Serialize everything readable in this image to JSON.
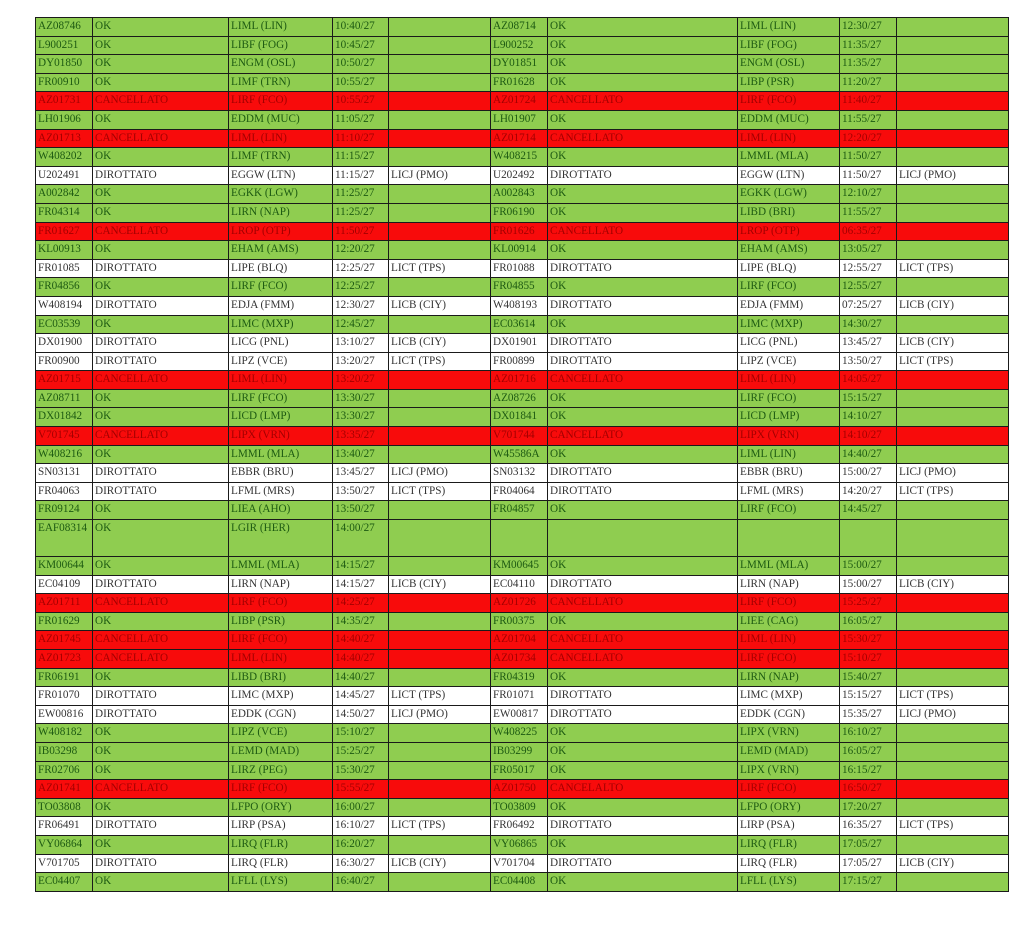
{
  "colors": {
    "ok": "#8fcd50",
    "cancelled": "#f80b0b",
    "diverted": "#ffffff"
  },
  "rows": [
    {
      "l": [
        "AZ08746",
        "OK",
        "LIML (LIN)",
        "10:40/27",
        ""
      ],
      "r": [
        "AZ08714",
        "OK",
        "LIML (LIN)",
        "12:30/27",
        ""
      ]
    },
    {
      "l": [
        "L900251",
        "OK",
        "LIBF (FOG)",
        "10:45/27",
        ""
      ],
      "r": [
        "L900252",
        "OK",
        "LIBF (FOG)",
        "11:35/27",
        ""
      ]
    },
    {
      "l": [
        "DY01850",
        "OK",
        "ENGM (OSL)",
        "10:50/27",
        ""
      ],
      "r": [
        "DY01851",
        "OK",
        "ENGM (OSL)",
        "11:35/27",
        ""
      ]
    },
    {
      "l": [
        "FR00910",
        "OK",
        "LIMF (TRN)",
        "10:55/27",
        ""
      ],
      "r": [
        "FR01628",
        "OK",
        "LIBP (PSR)",
        "11:20/27",
        ""
      ]
    },
    {
      "l": [
        "AZ01731",
        "CANCELLATO",
        "LIRF (FCO)",
        "10:55/27",
        ""
      ],
      "r": [
        "AZ01724",
        "CANCELLATO",
        "LIRF (FCO)",
        "11:40/27",
        ""
      ]
    },
    {
      "l": [
        "LH01906",
        "OK",
        "EDDM (MUC)",
        "11:05/27",
        ""
      ],
      "r": [
        "LH01907",
        "OK",
        "EDDM (MUC)",
        "11:55/27",
        ""
      ]
    },
    {
      "l": [
        "AZ01713",
        "CANCELLATO",
        "LIML (LIN)",
        "11:10/27",
        ""
      ],
      "r": [
        "AZ01714",
        "CANCELLATO",
        "LIML (LIN)",
        "12:20/27",
        ""
      ]
    },
    {
      "l": [
        "W408202",
        "OK",
        "LIMF (TRN)",
        "11:15/27",
        ""
      ],
      "r": [
        "W408215",
        "OK",
        "LMML (MLA)",
        "11:50/27",
        ""
      ]
    },
    {
      "l": [
        "U202491",
        "DIROTTATO",
        "EGGW (LTN)",
        "11:15/27",
        "LICJ (PMO)"
      ],
      "r": [
        "U202492",
        "DIROTTATO",
        "EGGW (LTN)",
        "11:50/27",
        "LICJ (PMO)"
      ]
    },
    {
      "l": [
        "A002842",
        "OK",
        "EGKK (LGW)",
        "11:25/27",
        ""
      ],
      "r": [
        "A002843",
        "OK",
        "EGKK (LGW)",
        "12:10/27",
        ""
      ]
    },
    {
      "l": [
        "FR04314",
        "OK",
        "LIRN (NAP)",
        "11:25/27",
        ""
      ],
      "r": [
        "FR06190",
        "OK",
        "LIBD (BRI)",
        "11:55/27",
        ""
      ]
    },
    {
      "l": [
        "FR01627",
        "CANCELLATO",
        "LROP (OTP)",
        "11:50/27",
        ""
      ],
      "r": [
        "FR01626",
        "CANCELLATO",
        "LROP (OTP)",
        "06:35/27",
        ""
      ]
    },
    {
      "l": [
        "KL00913",
        "OK",
        "EHAM (AMS)",
        "12:20/27",
        ""
      ],
      "r": [
        "KL00914",
        "OK",
        "EHAM (AMS)",
        "13:05/27",
        ""
      ]
    },
    {
      "l": [
        "FR01085",
        "DIROTTATO",
        "LIPE (BLQ)",
        "12:25/27",
        "LICT (TPS)"
      ],
      "r": [
        "FR01088",
        "DIROTTATO",
        "LIPE (BLQ)",
        "12:55/27",
        "LICT (TPS)"
      ]
    },
    {
      "l": [
        "FR04856",
        "OK",
        "LIRF (FCO)",
        "12:25/27",
        ""
      ],
      "r": [
        "FR04855",
        "OK",
        "LIRF (FCO)",
        "12:55/27",
        ""
      ]
    },
    {
      "l": [
        "W408194",
        "DIROTTATO",
        "EDJA (FMM)",
        "12:30/27",
        "LICB (CIY)"
      ],
      "r": [
        "W408193",
        "DIROTTATO",
        "EDJA (FMM)",
        "07:25/27",
        "LICB (CIY)"
      ]
    },
    {
      "l": [
        "EC03539",
        "OK",
        "LIMC (MXP)",
        "12:45/27",
        ""
      ],
      "r": [
        "EC03614",
        "OK",
        "LIMC (MXP)",
        "14:30/27",
        ""
      ]
    },
    {
      "l": [
        "DX01900",
        "DIROTTATO",
        "LICG (PNL)",
        "13:10/27",
        "LICB (CIY)"
      ],
      "r": [
        "DX01901",
        "DIROTTATO",
        "LICG (PNL)",
        "13:45/27",
        "LICB (CIY)"
      ]
    },
    {
      "l": [
        "FR00900",
        "DIROTTATO",
        "LIPZ (VCE)",
        "13:20/27",
        "LICT (TPS)"
      ],
      "r": [
        "FR00899",
        "DIROTTATO",
        "LIPZ (VCE)",
        "13:50/27",
        "LICT (TPS)"
      ]
    },
    {
      "l": [
        "AZ01715",
        "CANCELLATO",
        "LIML (LIN)",
        "13:20/27",
        ""
      ],
      "r": [
        "AZ01716",
        "CANCELLATO",
        "LIML (LIN)",
        "14:05/27",
        ""
      ]
    },
    {
      "l": [
        "AZ08711",
        "OK",
        "LIRF (FCO)",
        "13:30/27",
        ""
      ],
      "r": [
        "AZ08726",
        "OK",
        "LIRF (FCO)",
        "15:15/27",
        ""
      ]
    },
    {
      "l": [
        "DX01842",
        "OK",
        "LICD (LMP)",
        "13:30/27",
        ""
      ],
      "r": [
        "DX01841",
        "OK",
        "LICD (LMP)",
        "14:10/27",
        ""
      ]
    },
    {
      "l": [
        "V701745",
        "CANCELLATO",
        "LIPX (VRN)",
        "13:35/27",
        ""
      ],
      "r": [
        "V701744",
        "CANCELLATO",
        "LIPX (VRN)",
        "14:10/27",
        ""
      ]
    },
    {
      "l": [
        "W408216",
        "OK",
        "LMML (MLA)",
        "13:40/27",
        ""
      ],
      "r": [
        "W45586A",
        "OK",
        "LIML (LIN)",
        "14:40/27",
        ""
      ]
    },
    {
      "l": [
        "SN03131",
        "DIROTTATO",
        "EBBR (BRU)",
        "13:45/27",
        "LICJ (PMO)"
      ],
      "r": [
        "SN03132",
        "DIROTTATO",
        "EBBR (BRU)",
        "15:00/27",
        "LICJ (PMO)"
      ]
    },
    {
      "l": [
        "FR04063",
        "DIROTTATO",
        "LFML (MRS)",
        "13:50/27",
        "LICT (TPS)"
      ],
      "r": [
        "FR04064",
        "DIROTTATO",
        "LFML (MRS)",
        "14:20/27",
        "LICT (TPS)"
      ]
    },
    {
      "l": [
        "FR09124",
        "OK",
        "LIEA (AHO)",
        "13:50/27",
        ""
      ],
      "r": [
        "FR04857",
        "OK",
        "LIRF (FCO)",
        "14:45/27",
        ""
      ]
    },
    {
      "l": [
        "EAF08314",
        "OK",
        "LGIR (HER)",
        "14:00/27",
        ""
      ],
      "r": [
        "",
        "",
        "",
        "",
        ""
      ],
      "tall": true
    },
    {
      "l": [
        "KM00644",
        "OK",
        "LMML (MLA)",
        "14:15/27",
        ""
      ],
      "r": [
        "KM00645",
        "OK",
        "LMML (MLA)",
        "15:00/27",
        ""
      ]
    },
    {
      "l": [
        "EC04109",
        "DIROTTATO",
        "LIRN (NAP)",
        "14:15/27",
        "LICB (CIY)"
      ],
      "r": [
        "EC04110",
        "DIROTTATO",
        "LIRN (NAP)",
        "15:00/27",
        "LICB (CIY)"
      ]
    },
    {
      "l": [
        "AZ01711",
        "CANCELLATO",
        "LIRF (FCO)",
        "14:25/27",
        ""
      ],
      "r": [
        "AZ01726",
        "CANCELLATO",
        "LIRF (FCO)",
        "15:25/27",
        ""
      ]
    },
    {
      "l": [
        "FR01629",
        "OK",
        "LIBP (PSR)",
        "14:35/27",
        ""
      ],
      "r": [
        "FR00375",
        "OK",
        "LIEE (CAG)",
        "16:05/27",
        ""
      ]
    },
    {
      "l": [
        "AZ01745",
        "CANCELLATO",
        "LIRF (FCO)",
        "14:40/27",
        ""
      ],
      "r": [
        "AZ01704",
        "CANCELLATO",
        "LIML (LIN)",
        "15:30/27",
        ""
      ]
    },
    {
      "l": [
        "AZ01723",
        "CANCELLATO",
        "LIML (LIN)",
        "14:40/27",
        ""
      ],
      "r": [
        "AZ01734",
        "CANCELLATO",
        "LIRF (FCO)",
        "15:10/27",
        ""
      ]
    },
    {
      "l": [
        "FR06191",
        "OK",
        "LIBD (BRI)",
        "14:40/27",
        ""
      ],
      "r": [
        "FR04319",
        "OK",
        "LIRN (NAP)",
        "15:40/27",
        ""
      ]
    },
    {
      "l": [
        "FR01070",
        "DIROTTATO",
        "LIMC (MXP)",
        "14:45/27",
        "LICT (TPS)"
      ],
      "r": [
        "FR01071",
        "DIROTTATO",
        "LIMC (MXP)",
        "15:15/27",
        "LICT (TPS)"
      ]
    },
    {
      "l": [
        "EW00816",
        "DIROTTATO",
        "EDDK (CGN)",
        "14:50/27",
        "LICJ (PMO)"
      ],
      "r": [
        "EW00817",
        "DIROTTATO",
        "EDDK (CGN)",
        "15:35/27",
        "LICJ (PMO)"
      ]
    },
    {
      "l": [
        "W408182",
        "OK",
        "LIPZ (VCE)",
        "15:10/27",
        ""
      ],
      "r": [
        "W408225",
        "OK",
        "LIPX (VRN)",
        "16:10/27",
        ""
      ]
    },
    {
      "l": [
        "IB03298",
        "OK",
        "LEMD (MAD)",
        "15:25/27",
        ""
      ],
      "r": [
        "IB03299",
        "OK",
        "LEMD (MAD)",
        "16:05/27",
        ""
      ]
    },
    {
      "l": [
        "FR02706",
        "OK",
        "LIRZ (PEG)",
        "15:30/27",
        ""
      ],
      "r": [
        "FR05017",
        "OK",
        "LIPX (VRN)",
        "16:15/27",
        ""
      ]
    },
    {
      "l": [
        "AZ01741",
        "CANCELLATO",
        "LIRF (FCO)",
        "15:55/27",
        ""
      ],
      "r": [
        "AZ01750",
        "CANCELALTO",
        "LIRF (FCO)",
        "16:50/27",
        ""
      ]
    },
    {
      "l": [
        "TO03808",
        "OK",
        "LFPO (ORY)",
        "16:00/27",
        ""
      ],
      "r": [
        "TO03809",
        "OK",
        "LFPO (ORY)",
        "17:20/27",
        ""
      ]
    },
    {
      "l": [
        "FR06491",
        "DIROTTATO",
        "LIRP (PSA)",
        "16:10/27",
        "LICT (TPS)"
      ],
      "r": [
        "FR06492",
        "DIROTTATO",
        "LIRP (PSA)",
        "16:35/27",
        "LICT (TPS)"
      ]
    },
    {
      "l": [
        "VY06864",
        "OK",
        "LIRQ (FLR)",
        "16:20/27",
        ""
      ],
      "r": [
        "VY06865",
        "OK",
        "LIRQ (FLR)",
        "17:05/27",
        ""
      ]
    },
    {
      "l": [
        "V701705",
        "DIROTTATO",
        "LIRQ (FLR)",
        "16:30/27",
        "LICB (CIY)"
      ],
      "r": [
        "V701704",
        "DIROTTATO",
        "LIRQ (FLR)",
        "17:05/27",
        "LICB (CIY)"
      ]
    },
    {
      "l": [
        "EC04407",
        "OK",
        "LFLL (LYS)",
        "16:40/27",
        ""
      ],
      "r": [
        "EC04408",
        "OK",
        "LFLL (LYS)",
        "17:15/27",
        ""
      ]
    }
  ]
}
